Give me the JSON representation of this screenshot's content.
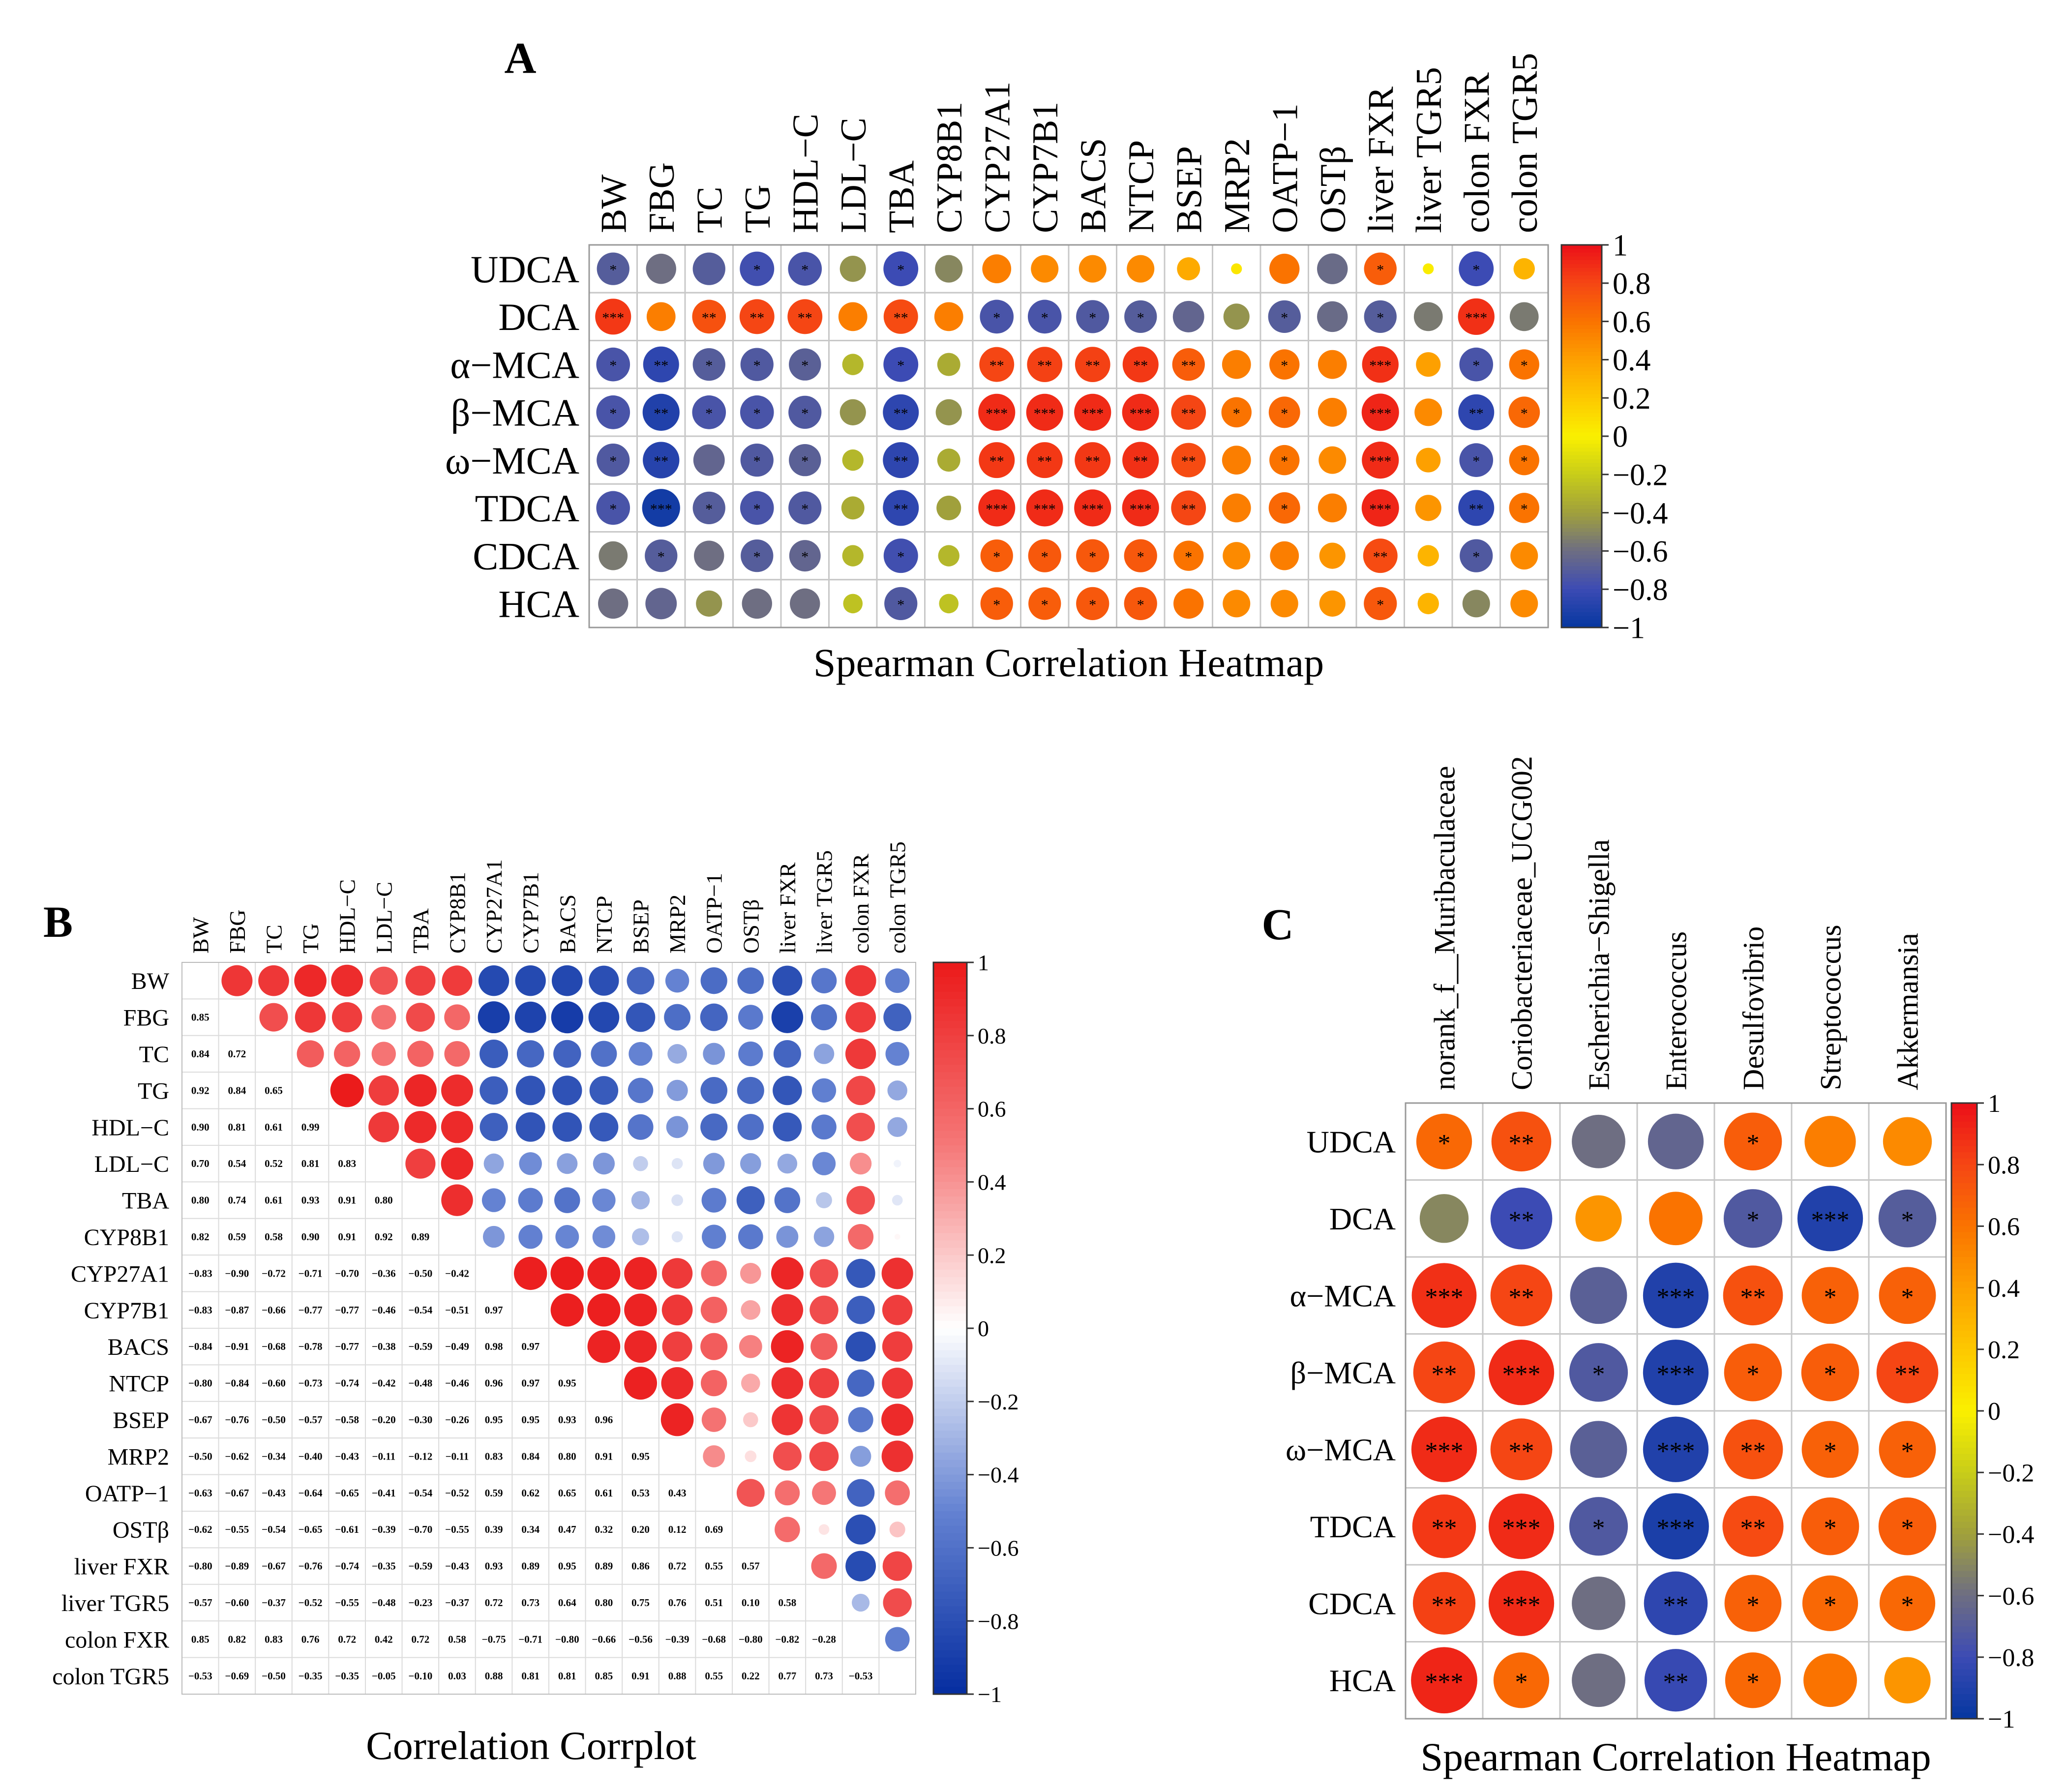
{
  "chart_data": [
    {
      "type": "heatmap",
      "panel_label": "A",
      "title": "Spearman Correlation Heatmap",
      "columns": [
        "BW",
        "FBG",
        "TC",
        "TG",
        "HDL−C",
        "LDL−C",
        "TBA",
        "CYP8B1",
        "CYP27A1",
        "CYP7B1",
        "BACS",
        "NTCP",
        "BSEP",
        "MRP2",
        "OATP−1",
        "OSTβ",
        "liver FXR",
        "liver TGR5",
        "colon FXR",
        "colon TGR5"
      ],
      "rows": [
        "UDCA",
        "DCA",
        "α−MCA",
        "β−MCA",
        "ω−MCA",
        "TDCA",
        "CDCA",
        "HCA"
      ],
      "values": [
        [
          -0.7,
          -0.6,
          -0.7,
          -0.78,
          -0.75,
          -0.45,
          -0.8,
          -0.5,
          0.55,
          0.5,
          0.5,
          0.5,
          0.35,
          0.05,
          0.6,
          -0.62,
          0.7,
          0.02,
          -0.8,
          0.3
        ],
        [
          0.85,
          0.55,
          0.75,
          0.8,
          0.8,
          0.55,
          0.78,
          0.55,
          -0.75,
          -0.75,
          -0.72,
          -0.7,
          -0.65,
          -0.45,
          -0.7,
          -0.62,
          -0.7,
          -0.55,
          0.88,
          -0.55
        ],
        [
          -0.75,
          -0.85,
          -0.7,
          -0.72,
          -0.68,
          -0.3,
          -0.8,
          -0.35,
          0.8,
          0.82,
          0.82,
          0.85,
          0.7,
          0.55,
          0.6,
          0.55,
          0.88,
          0.4,
          -0.75,
          0.6
        ],
        [
          -0.75,
          -0.9,
          -0.75,
          -0.75,
          -0.72,
          -0.45,
          -0.85,
          -0.45,
          0.9,
          0.9,
          0.9,
          0.9,
          0.8,
          0.6,
          0.65,
          0.55,
          0.92,
          0.5,
          -0.85,
          0.65
        ],
        [
          -0.72,
          -0.88,
          -0.65,
          -0.72,
          -0.68,
          -0.3,
          -0.85,
          -0.35,
          0.85,
          0.85,
          0.85,
          0.88,
          0.78,
          0.55,
          0.6,
          0.5,
          0.9,
          0.4,
          -0.75,
          0.6
        ],
        [
          -0.75,
          -0.95,
          -0.7,
          -0.75,
          -0.72,
          -0.35,
          -0.85,
          -0.4,
          0.9,
          0.9,
          0.9,
          0.9,
          0.8,
          0.55,
          0.65,
          0.55,
          0.92,
          0.45,
          -0.85,
          0.6
        ],
        [
          -0.55,
          -0.7,
          -0.6,
          -0.7,
          -0.65,
          -0.3,
          -0.78,
          -0.3,
          0.7,
          0.72,
          0.72,
          0.72,
          0.6,
          0.5,
          0.55,
          0.45,
          0.78,
          0.3,
          -0.72,
          0.5
        ],
        [
          -0.6,
          -0.65,
          -0.45,
          -0.6,
          -0.6,
          -0.25,
          -0.72,
          -0.25,
          0.7,
          0.7,
          0.72,
          0.72,
          0.6,
          0.5,
          0.5,
          0.45,
          0.72,
          0.3,
          -0.5,
          0.5
        ]
      ],
      "significance": [
        [
          "*",
          "",
          "",
          "*",
          "*",
          "",
          "*",
          "",
          "",
          "",
          "",
          "",
          "",
          "",
          "",
          "",
          "*",
          "",
          "*",
          ""
        ],
        [
          "***",
          "",
          "**",
          "**",
          "**",
          "",
          "**",
          "",
          "*",
          "*",
          "*",
          "*",
          "",
          "",
          "*",
          "",
          "*",
          "",
          "***",
          ""
        ],
        [
          "*",
          "**",
          "*",
          "*",
          "*",
          "",
          "*",
          "",
          "**",
          "**",
          "**",
          "**",
          "**",
          "",
          "*",
          "",
          "***",
          "",
          "*",
          "*"
        ],
        [
          "*",
          "**",
          "*",
          "*",
          "*",
          "",
          "**",
          "",
          "***",
          "***",
          "***",
          "***",
          "**",
          "*",
          "*",
          "",
          "***",
          "",
          "**",
          "*"
        ],
        [
          "*",
          "**",
          "",
          "*",
          "*",
          "",
          "**",
          "",
          "**",
          "**",
          "**",
          "**",
          "**",
          "",
          "*",
          "",
          "***",
          "",
          "*",
          "*"
        ],
        [
          "*",
          "***",
          "*",
          "*",
          "*",
          "",
          "**",
          "",
          "***",
          "***",
          "***",
          "***",
          "**",
          "",
          "*",
          "",
          "***",
          "",
          "**",
          "*"
        ],
        [
          "",
          "*",
          "",
          "*",
          "*",
          "",
          "*",
          "",
          "*",
          "*",
          "*",
          "*",
          "*",
          "",
          "",
          "",
          "**",
          "",
          "*",
          ""
        ],
        [
          "",
          "",
          "",
          "",
          "",
          "",
          "*",
          "",
          "*",
          "*",
          "*",
          "*",
          "",
          "",
          "",
          "",
          "*",
          "",
          "",
          ""
        ]
      ],
      "colorbar_ticks": [
        "1",
        "0.8",
        "0.6",
        "0.4",
        "0.2",
        "0",
        "−0.2",
        "−0.4",
        "−0.6",
        "−0.8",
        "−1"
      ],
      "vlim": [
        -1,
        1
      ]
    },
    {
      "type": "heatmap",
      "panel_label": "B",
      "title": "Correlation Corrplot",
      "variables": [
        "BW",
        "FBG",
        "TC",
        "TG",
        "HDL−C",
        "LDL−C",
        "TBA",
        "CYP8B1",
        "CYP27A1",
        "CYP7B1",
        "BACS",
        "NTCP",
        "BSEP",
        "MRP2",
        "OATP−1",
        "OSTβ",
        "liver FXR",
        "liver TGR5",
        "colon FXR",
        "colon TGR5"
      ],
      "lower": [
        [],
        [
          0.85
        ],
        [
          0.84,
          0.72
        ],
        [
          0.92,
          0.84,
          0.65
        ],
        [
          0.9,
          0.81,
          0.61,
          0.99
        ],
        [
          0.7,
          0.54,
          0.52,
          0.81,
          0.83
        ],
        [
          0.8,
          0.74,
          0.61,
          0.93,
          0.91,
          0.8
        ],
        [
          0.82,
          0.59,
          0.58,
          0.9,
          0.91,
          0.92,
          0.89
        ],
        [
          -0.83,
          -0.9,
          -0.72,
          -0.71,
          -0.7,
          -0.36,
          -0.5,
          -0.42
        ],
        [
          -0.83,
          -0.87,
          -0.66,
          -0.77,
          -0.77,
          -0.46,
          -0.54,
          -0.51,
          0.97
        ],
        [
          -0.84,
          -0.91,
          -0.68,
          -0.78,
          -0.77,
          -0.38,
          -0.59,
          -0.49,
          0.98,
          0.97
        ],
        [
          -0.8,
          -0.84,
          -0.6,
          -0.73,
          -0.74,
          -0.42,
          -0.48,
          -0.46,
          0.96,
          0.97,
          0.95
        ],
        [
          -0.67,
          -0.76,
          -0.5,
          -0.57,
          -0.58,
          -0.2,
          -0.3,
          -0.26,
          0.95,
          0.95,
          0.93,
          0.96
        ],
        [
          -0.5,
          -0.62,
          -0.34,
          -0.4,
          -0.43,
          -0.11,
          -0.12,
          -0.11,
          0.83,
          0.84,
          0.8,
          0.91,
          0.95
        ],
        [
          -0.63,
          -0.67,
          -0.43,
          -0.64,
          -0.65,
          -0.41,
          -0.54,
          -0.52,
          0.59,
          0.62,
          0.65,
          0.61,
          0.53,
          0.43
        ],
        [
          -0.62,
          -0.55,
          -0.54,
          -0.65,
          -0.61,
          -0.39,
          -0.7,
          -0.55,
          0.39,
          0.34,
          0.47,
          0.32,
          0.2,
          0.12,
          0.69
        ],
        [
          -0.8,
          -0.89,
          -0.67,
          -0.76,
          -0.74,
          -0.35,
          -0.59,
          -0.43,
          0.93,
          0.89,
          0.95,
          0.89,
          0.86,
          0.72,
          0.55,
          0.57
        ],
        [
          -0.57,
          -0.6,
          -0.37,
          -0.52,
          -0.55,
          -0.48,
          -0.23,
          -0.37,
          0.72,
          0.73,
          0.64,
          0.8,
          0.75,
          0.76,
          0.51,
          0.1,
          0.58
        ],
        [
          0.85,
          0.82,
          0.83,
          0.76,
          0.72,
          0.42,
          0.72,
          0.58,
          -0.75,
          -0.71,
          -0.8,
          -0.66,
          -0.56,
          -0.39,
          -0.68,
          -0.8,
          -0.82,
          -0.28
        ],
        [
          -0.53,
          -0.69,
          -0.5,
          -0.35,
          -0.35,
          -0.05,
          -0.1,
          0.03,
          0.88,
          0.81,
          0.81,
          0.85,
          0.91,
          0.88,
          0.55,
          0.22,
          0.77,
          0.73,
          -0.53
        ]
      ],
      "colorbar_ticks": [
        "1",
        "0.8",
        "0.6",
        "0.4",
        "0.2",
        "0",
        "−0.2",
        "−0.4",
        "−0.6",
        "−0.8",
        "−1"
      ],
      "vlim": [
        -1,
        1
      ]
    },
    {
      "type": "heatmap",
      "panel_label": "C",
      "title": "Spearman Correlation Heatmap",
      "columns": [
        "norank_f__Muribaculaceae",
        "Coriobacteriaceae_UCG002",
        "Escherichia−Shigella",
        "Enterococcus",
        "Desulfovibrio",
        "Streptococcus",
        "Akkermansia"
      ],
      "rows": [
        "UDCA",
        "DCA",
        "α−MCA",
        "β−MCA",
        "ω−MCA",
        "TDCA",
        "CDCA",
        "HCA"
      ],
      "values": [
        [
          0.65,
          0.75,
          -0.6,
          -0.65,
          0.7,
          0.55,
          0.5
        ],
        [
          -0.5,
          -0.8,
          0.45,
          0.6,
          -0.72,
          -0.9,
          -0.7
        ],
        [
          0.88,
          0.8,
          -0.68,
          -0.9,
          0.75,
          0.68,
          0.68
        ],
        [
          0.8,
          0.9,
          -0.72,
          -0.9,
          0.7,
          0.7,
          0.8
        ],
        [
          0.9,
          0.8,
          -0.68,
          -0.9,
          0.75,
          0.68,
          0.68
        ],
        [
          0.85,
          0.9,
          -0.72,
          -0.92,
          0.78,
          0.7,
          0.7
        ],
        [
          0.82,
          0.9,
          -0.6,
          -0.85,
          0.68,
          0.65,
          0.65
        ],
        [
          0.92,
          0.65,
          -0.6,
          -0.82,
          0.65,
          0.6,
          0.45
        ]
      ],
      "significance": [
        [
          "*",
          "**",
          "",
          "",
          "*",
          "",
          ""
        ],
        [
          "",
          "**",
          "",
          "",
          "*",
          "***",
          "*"
        ],
        [
          "***",
          "**",
          "",
          "***",
          "**",
          "*",
          "*"
        ],
        [
          "**",
          "***",
          "*",
          "***",
          "*",
          "*",
          "**"
        ],
        [
          "***",
          "**",
          "",
          "***",
          "**",
          "*",
          "*"
        ],
        [
          "**",
          "***",
          "*",
          "***",
          "**",
          "*",
          "*"
        ],
        [
          "**",
          "***",
          "",
          "**",
          "*",
          "*",
          "*"
        ],
        [
          "***",
          "*",
          "",
          "**",
          "*",
          "",
          ""
        ]
      ],
      "colorbar_ticks": [
        "1",
        "0.8",
        "0.6",
        "0.4",
        "0.2",
        "0",
        "−0.2",
        "−0.4",
        "−0.6",
        "−0.8",
        "−1"
      ],
      "vlim": [
        -1,
        1
      ]
    }
  ]
}
